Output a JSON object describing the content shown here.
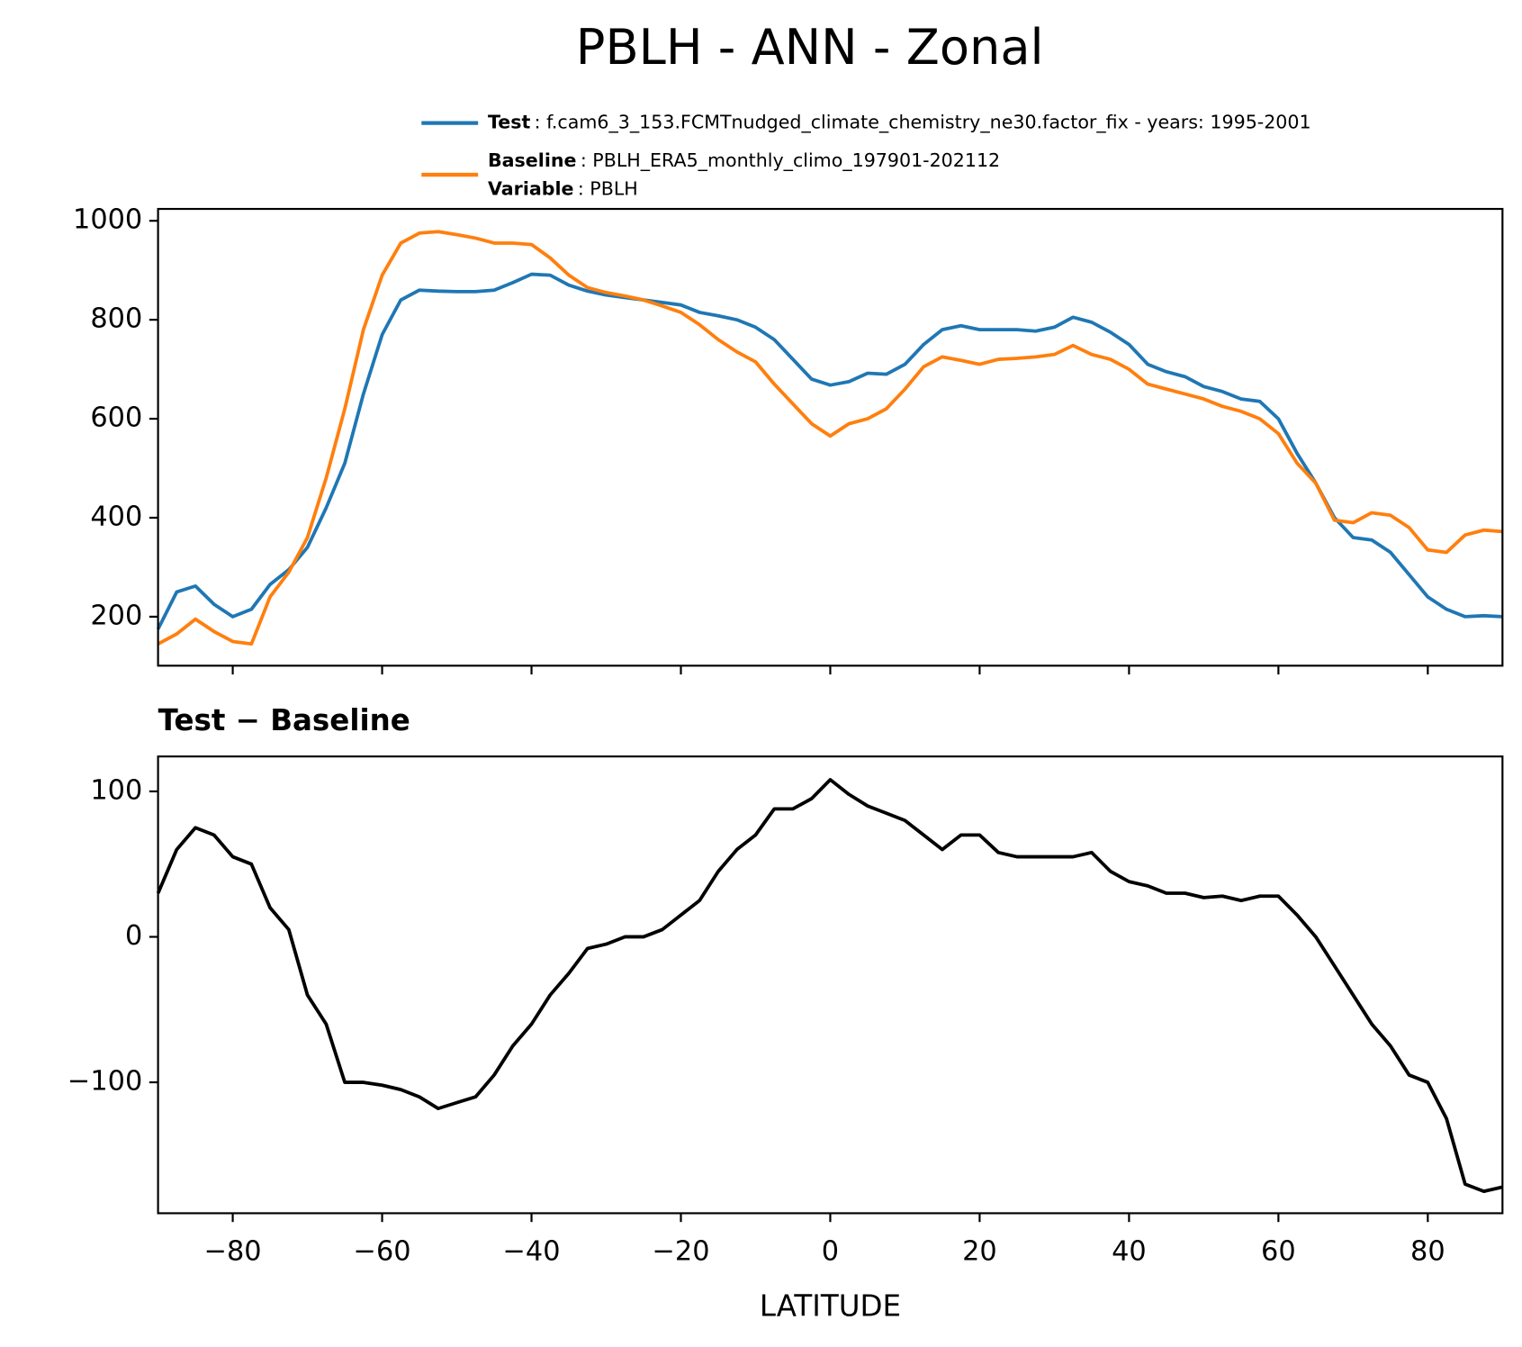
{
  "chart_data": [
    {
      "type": "line",
      "title": "PBLH - ANN - Zonal",
      "x": [
        -90,
        -87.5,
        -85,
        -82.5,
        -80,
        -77.5,
        -75,
        -72.5,
        -70,
        -67.5,
        -65,
        -62.5,
        -60,
        -57.5,
        -55,
        -52.5,
        -50,
        -47.5,
        -45,
        -42.5,
        -40,
        -37.5,
        -35,
        -32.5,
        -30,
        -27.5,
        -25,
        -22.5,
        -20,
        -17.5,
        -15,
        -12.5,
        -10,
        -7.5,
        -5,
        -2.5,
        0,
        2.5,
        5,
        7.5,
        10,
        12.5,
        15,
        17.5,
        20,
        22.5,
        25,
        27.5,
        30,
        32.5,
        35,
        37.5,
        40,
        42.5,
        45,
        47.5,
        50,
        52.5,
        55,
        57.5,
        60,
        62.5,
        65,
        67.5,
        70,
        72.5,
        75,
        77.5,
        80,
        82.5,
        85,
        87.5,
        90
      ],
      "series": [
        {
          "name": "Test",
          "label": ": f.cam6_3_153.FCMTnudged_climate_chemistry_ne30.factor_fix - years: 1995-2001",
          "color": "#1f77b4",
          "values": [
            175,
            250,
            262,
            225,
            200,
            215,
            265,
            295,
            340,
            420,
            510,
            650,
            770,
            840,
            860,
            858,
            857,
            857,
            860,
            875,
            892,
            890,
            870,
            858,
            850,
            845,
            840,
            835,
            830,
            815,
            808,
            800,
            785,
            760,
            720,
            680,
            668,
            675,
            692,
            690,
            710,
            750,
            780,
            788,
            780,
            780,
            780,
            777,
            785,
            805,
            795,
            775,
            750,
            710,
            695,
            685,
            665,
            655,
            640,
            635,
            600,
            530,
            470,
            400,
            360,
            355,
            330,
            285,
            240,
            215,
            200,
            202,
            200
          ]
        },
        {
          "name": "Baseline",
          "label": ": PBLH_ERA5_monthly_climo_197901-202112",
          "color": "#ff7f0e",
          "values": [
            145,
            165,
            195,
            170,
            150,
            145,
            240,
            290,
            360,
            480,
            620,
            780,
            890,
            955,
            975,
            978,
            972,
            965,
            955,
            955,
            952,
            925,
            890,
            865,
            855,
            848,
            840,
            828,
            815,
            790,
            760,
            735,
            715,
            670,
            630,
            590,
            565,
            590,
            600,
            620,
            660,
            705,
            725,
            718,
            710,
            720,
            722,
            725,
            730,
            748,
            730,
            720,
            700,
            670,
            660,
            650,
            640,
            625,
            615,
            600,
            570,
            510,
            470,
            395,
            390,
            410,
            405,
            380,
            335,
            330,
            365,
            375,
            372
          ]
        }
      ],
      "variable": {
        "name": "Variable",
        "label": ": PBLH"
      },
      "xlim": [
        -90,
        90
      ],
      "xticks": [
        -80,
        -60,
        -40,
        -20,
        0,
        20,
        40,
        60,
        80
      ],
      "ylim": [
        101,
        1024
      ],
      "yticks": [
        200,
        400,
        600,
        800,
        1000
      ]
    },
    {
      "type": "line",
      "title": "Test − Baseline",
      "xlabel": "LATITUDE",
      "x": [
        -90,
        -87.5,
        -85,
        -82.5,
        -80,
        -77.5,
        -75,
        -72.5,
        -70,
        -67.5,
        -65,
        -62.5,
        -60,
        -57.5,
        -55,
        -52.5,
        -50,
        -47.5,
        -45,
        -42.5,
        -40,
        -37.5,
        -35,
        -32.5,
        -30,
        -27.5,
        -25,
        -22.5,
        -20,
        -17.5,
        -15,
        -12.5,
        -10,
        -7.5,
        -5,
        -2.5,
        0,
        2.5,
        5,
        7.5,
        10,
        12.5,
        15,
        17.5,
        20,
        22.5,
        25,
        27.5,
        30,
        32.5,
        35,
        37.5,
        40,
        42.5,
        45,
        47.5,
        50,
        52.5,
        55,
        57.5,
        60,
        62.5,
        65,
        67.5,
        70,
        72.5,
        75,
        77.5,
        80,
        82.5,
        85,
        87.5,
        90
      ],
      "series": [
        {
          "color": "#000000",
          "values": [
            30,
            60,
            75,
            70,
            55,
            50,
            20,
            5,
            -40,
            -60,
            -100,
            -100,
            -102,
            -105,
            -110,
            -118,
            -114,
            -110,
            -95,
            -75,
            -60,
            -40,
            -25,
            -8,
            -5,
            0,
            0,
            5,
            15,
            25,
            45,
            60,
            70,
            88,
            88,
            95,
            108,
            98,
            90,
            85,
            80,
            70,
            60,
            70,
            70,
            58,
            55,
            55,
            55,
            55,
            58,
            45,
            38,
            35,
            30,
            30,
            27,
            28,
            25,
            28,
            28,
            15,
            0,
            -20,
            -40,
            -60,
            -75,
            -95,
            -100,
            -125,
            -170,
            -175,
            -172
          ]
        }
      ],
      "xlim": [
        -90,
        90
      ],
      "xticks": [
        {
          "value": -80,
          "label": "−80"
        },
        {
          "value": -60,
          "label": "−60"
        },
        {
          "value": -40,
          "label": "−40"
        },
        {
          "value": -20,
          "label": "−20"
        },
        0,
        20,
        40,
        60,
        80
      ],
      "ylim": [
        -190,
        124
      ],
      "yticks": [
        {
          "value": -100,
          "label": "−100"
        },
        0,
        100
      ]
    }
  ]
}
